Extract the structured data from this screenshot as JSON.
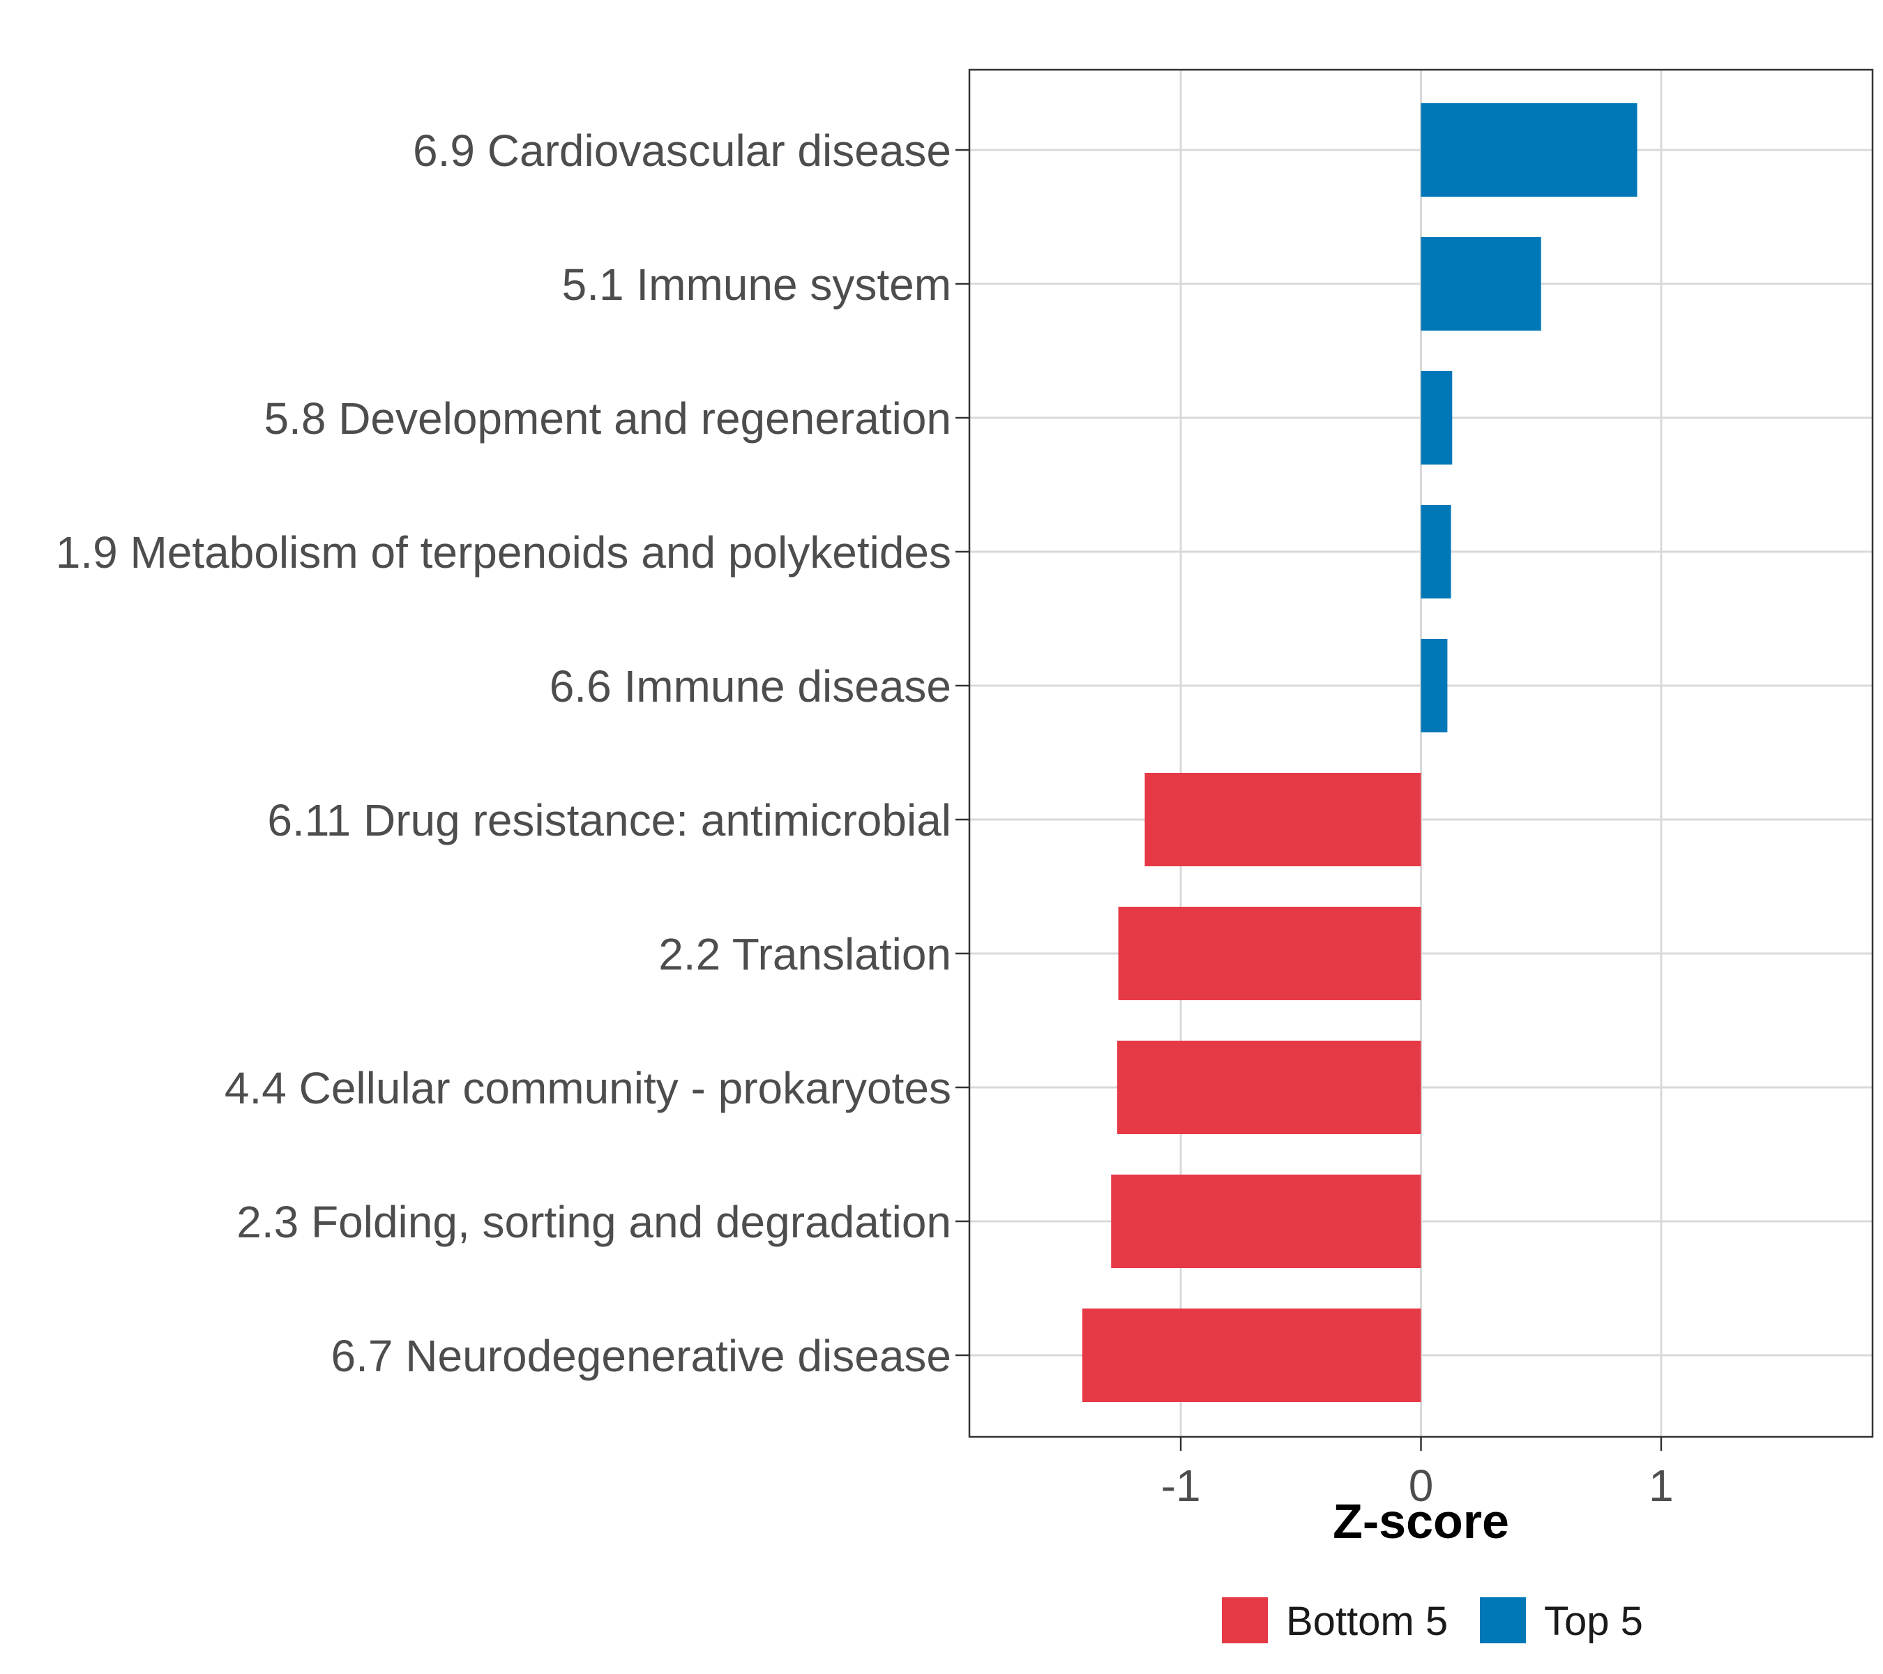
{
  "chart_data": {
    "type": "bar",
    "orientation": "horizontal",
    "title": "",
    "xlabel": "Z-score",
    "ylabel": "",
    "xlim": [
      -1.88,
      1.88
    ],
    "xticks": [
      -1,
      0,
      1
    ],
    "xtick_labels": [
      "-1",
      "0",
      "1"
    ],
    "grid": true,
    "legend_position": "bottom",
    "legend": [
      {
        "label": "Bottom 5",
        "color": "#e63946"
      },
      {
        "label": "Top 5",
        "color": "#0077b6"
      }
    ],
    "categories": [
      "6.9 Cardiovascular disease",
      "5.1 Immune system",
      "5.8 Development and regeneration",
      "1.9 Metabolism of terpenoids and polyketides",
      "6.6 Immune disease",
      "6.11 Drug resistance: antimicrobial",
      "2.2 Translation",
      "4.4 Cellular community - prokaryotes",
      "2.3 Folding, sorting and degradation",
      "6.7 Neurodegenerative disease"
    ],
    "values": [
      0.9,
      0.5,
      0.13,
      0.125,
      0.11,
      -1.15,
      -1.26,
      -1.265,
      -1.29,
      -1.41
    ],
    "groups": [
      "Top 5",
      "Top 5",
      "Top 5",
      "Top 5",
      "Top 5",
      "Bottom 5",
      "Bottom 5",
      "Bottom 5",
      "Bottom 5",
      "Bottom 5"
    ]
  }
}
